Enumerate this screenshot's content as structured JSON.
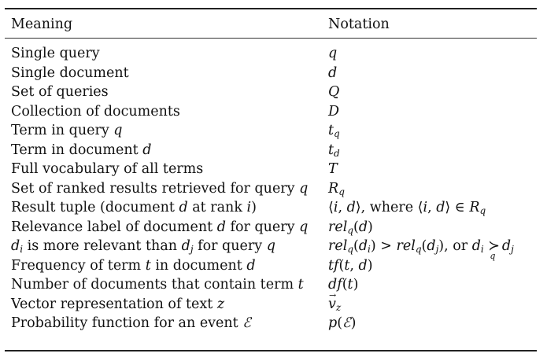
{
  "table": {
    "headers": [
      "Meaning",
      "Notation"
    ],
    "rows": [
      {
        "meaning": "Single query",
        "notation": "q"
      },
      {
        "meaning": "Single document",
        "notation": "d"
      },
      {
        "meaning": "Set of queries",
        "notation": "Q"
      },
      {
        "meaning": "Collection of documents",
        "notation": "D"
      },
      {
        "meaning": "Term in query q",
        "notation": "t_q"
      },
      {
        "meaning": "Term in document d",
        "notation": "t_d"
      },
      {
        "meaning": "Full vocabulary of all terms",
        "notation": "T"
      },
      {
        "meaning": "Set of ranked results retrieved for query q",
        "notation": "R_q"
      },
      {
        "meaning": "Result tuple (document d at rank i)",
        "notation": "⟨i, d⟩, where ⟨i, d⟩ ∈ R_q"
      },
      {
        "meaning": "Relevance label of document d for query q",
        "notation": "rel_q(d)"
      },
      {
        "meaning": "d_i is more relevant than d_j for query q",
        "notation": "rel_q(d_i) > rel_q(d_j), or d_i ≻_q d_j"
      },
      {
        "meaning": "Frequency of term t in document d",
        "notation": "tf(t, d)"
      },
      {
        "meaning": "Number of documents that contain term t",
        "notation": "df(t)"
      },
      {
        "meaning": "Vector representation of text z",
        "notation": "v⃗_z"
      },
      {
        "meaning": "Probability function for an event ℰ",
        "notation": "p(ℰ)"
      }
    ]
  }
}
